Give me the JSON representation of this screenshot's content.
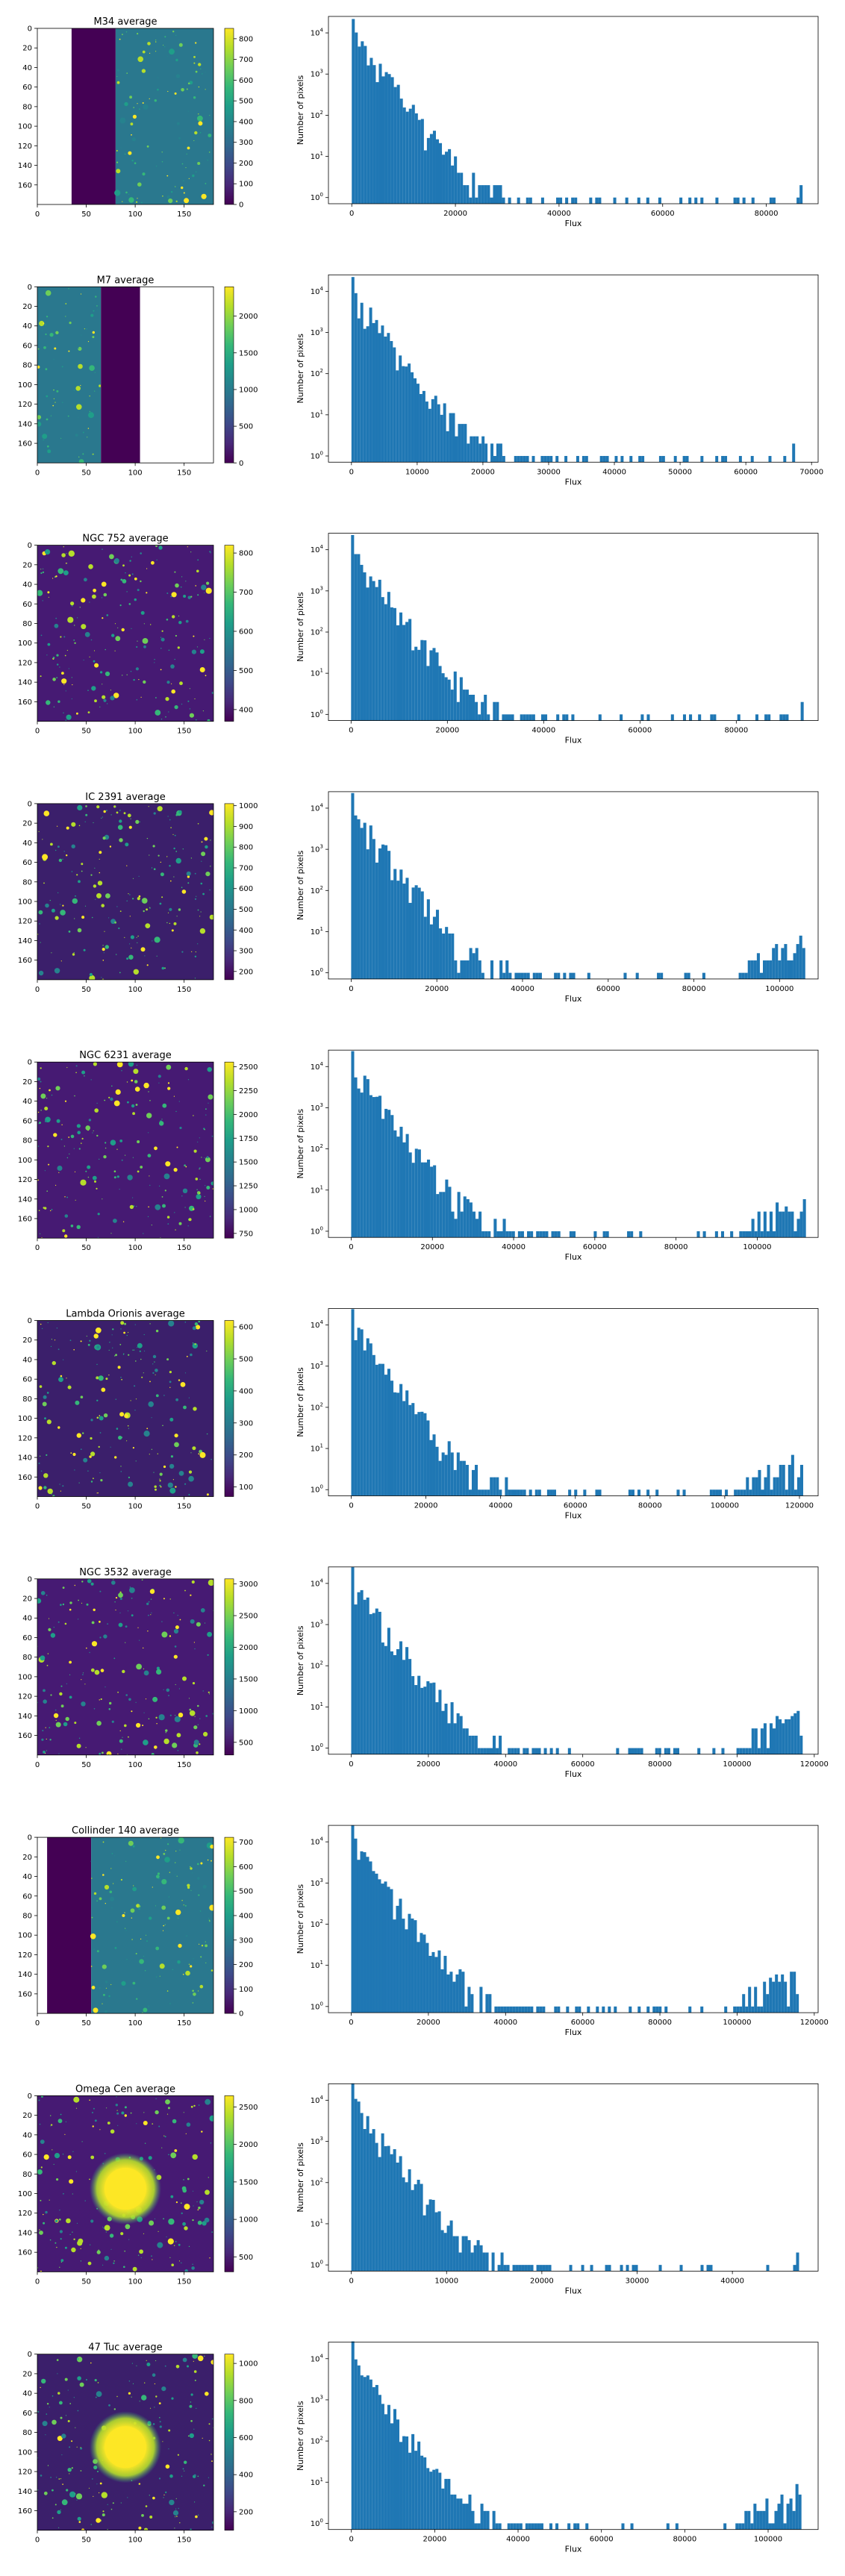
{
  "figure": {
    "colorbar_colors": [
      "#440154",
      "#482878",
      "#3e4a89",
      "#31688e",
      "#26828e",
      "#1f9e89",
      "#35b779",
      "#6ece58",
      "#b5de2b",
      "#fde725"
    ],
    "bar_color": "#1f77b4"
  },
  "chart_data": [
    {
      "type": "heatmap",
      "title": "M34 average",
      "xticks": [
        0,
        50,
        100,
        150
      ],
      "yticks": [
        0,
        20,
        40,
        60,
        80,
        100,
        120,
        140,
        160
      ],
      "xlim": [
        0,
        180
      ],
      "ylim": [
        180,
        0
      ],
      "colorbar_ticks": [
        0,
        100,
        200,
        300,
        400,
        500,
        600,
        700,
        800
      ],
      "colorbar_range": [
        0,
        850
      ],
      "pattern": "left white band, dark band, starfield on right",
      "bands": [
        {
          "x": [
            0,
            35
          ],
          "fill": "white"
        },
        {
          "x": [
            35,
            80
          ],
          "fill": "dark"
        },
        {
          "x": [
            80,
            180
          ],
          "fill": "stars"
        }
      ]
    },
    {
      "type": "bar",
      "xlabel": "Flux",
      "ylabel": "Number of pixels",
      "yscale": "log",
      "xticks": [
        0,
        20000,
        40000,
        60000,
        80000
      ],
      "xlim": [
        -4500,
        90000
      ],
      "peak_flux": 87000
    },
    {
      "type": "heatmap",
      "title": "M7 average",
      "xticks": [
        0,
        50,
        100,
        150
      ],
      "yticks": [
        0,
        20,
        40,
        60,
        80,
        100,
        120,
        140,
        160
      ],
      "xlim": [
        0,
        180
      ],
      "ylim": [
        180,
        0
      ],
      "colorbar_ticks": [
        0,
        500,
        1000,
        1500,
        2000
      ],
      "colorbar_range": [
        0,
        2400
      ],
      "bands": [
        {
          "x": [
            0,
            65
          ],
          "fill": "stars"
        },
        {
          "x": [
            65,
            105
          ],
          "fill": "dark"
        },
        {
          "x": [
            105,
            180
          ],
          "fill": "white"
        }
      ]
    },
    {
      "type": "bar",
      "xlabel": "Flux",
      "ylabel": "Number of pixels",
      "yscale": "log",
      "xticks": [
        0,
        10000,
        20000,
        30000,
        40000,
        50000,
        60000,
        70000
      ],
      "xlim": [
        -3500,
        71000
      ],
      "peak_flux": 67500
    },
    {
      "type": "heatmap",
      "title": "NGC 752 average",
      "xticks": [
        0,
        50,
        100,
        150
      ],
      "yticks": [
        0,
        20,
        40,
        60,
        80,
        100,
        120,
        140,
        160
      ],
      "xlim": [
        0,
        180
      ],
      "ylim": [
        180,
        0
      ],
      "colorbar_ticks": [
        400,
        500,
        600,
        700,
        800
      ],
      "colorbar_range": [
        370,
        820
      ],
      "bands": [
        {
          "x": [
            0,
            180
          ],
          "fill": "stars"
        }
      ]
    },
    {
      "type": "bar",
      "xlabel": "Flux",
      "ylabel": "Number of pixels",
      "yscale": "log",
      "xticks": [
        0,
        20000,
        40000,
        60000,
        80000
      ],
      "xlim": [
        -4700,
        97000
      ],
      "peak_flux": 94000
    },
    {
      "type": "heatmap",
      "title": "IC 2391 average",
      "xticks": [
        0,
        50,
        100,
        150
      ],
      "yticks": [
        0,
        20,
        40,
        60,
        80,
        100,
        120,
        140,
        160
      ],
      "xlim": [
        0,
        180
      ],
      "ylim": [
        180,
        0
      ],
      "colorbar_ticks": [
        200,
        300,
        400,
        500,
        600,
        700,
        800,
        900,
        1000
      ],
      "colorbar_range": [
        160,
        1010
      ],
      "bands": [
        {
          "x": [
            0,
            180
          ],
          "fill": "stars"
        }
      ]
    },
    {
      "type": "bar",
      "xlabel": "Flux",
      "ylabel": "Number of pixels",
      "yscale": "log",
      "xticks": [
        0,
        20000,
        40000,
        60000,
        80000,
        100000
      ],
      "xlim": [
        -5300,
        109000
      ],
      "peak_flux": 106000
    },
    {
      "type": "heatmap",
      "title": "NGC 6231 average",
      "xticks": [
        0,
        50,
        100,
        150
      ],
      "yticks": [
        0,
        20,
        40,
        60,
        80,
        100,
        120,
        140,
        160
      ],
      "xlim": [
        0,
        180
      ],
      "ylim": [
        180,
        0
      ],
      "colorbar_ticks": [
        750,
        1000,
        1250,
        1500,
        1750,
        2000,
        2250,
        2500
      ],
      "colorbar_range": [
        700,
        2550
      ],
      "bands": [
        {
          "x": [
            0,
            180
          ],
          "fill": "stars"
        }
      ]
    },
    {
      "type": "bar",
      "xlabel": "Flux",
      "ylabel": "Number of pixels",
      "yscale": "log",
      "xticks": [
        0,
        20000,
        40000,
        60000,
        80000,
        100000
      ],
      "xlim": [
        -5600,
        115000
      ],
      "peak_flux": 112000
    },
    {
      "type": "heatmap",
      "title": "Lambda Orionis average",
      "xticks": [
        0,
        50,
        100,
        150
      ],
      "yticks": [
        0,
        20,
        40,
        60,
        80,
        100,
        120,
        140,
        160
      ],
      "xlim": [
        0,
        180
      ],
      "ylim": [
        180,
        0
      ],
      "colorbar_ticks": [
        100,
        200,
        300,
        400,
        500,
        600
      ],
      "colorbar_range": [
        70,
        620
      ],
      "bands": [
        {
          "x": [
            0,
            180
          ],
          "fill": "stars"
        }
      ]
    },
    {
      "type": "bar",
      "xlabel": "Flux",
      "ylabel": "Number of pixels",
      "yscale": "log",
      "xticks": [
        0,
        20000,
        40000,
        60000,
        80000,
        100000,
        120000
      ],
      "xlim": [
        -6100,
        125000
      ],
      "peak_flux": 121000
    },
    {
      "type": "heatmap",
      "title": "NGC 3532 average",
      "xticks": [
        0,
        50,
        100,
        150
      ],
      "yticks": [
        0,
        20,
        40,
        60,
        80,
        100,
        120,
        140,
        160
      ],
      "xlim": [
        0,
        180
      ],
      "ylim": [
        180,
        0
      ],
      "colorbar_ticks": [
        500,
        1000,
        1500,
        2000,
        2500,
        3000
      ],
      "colorbar_range": [
        300,
        3080
      ],
      "bands": [
        {
          "x": [
            0,
            180
          ],
          "fill": "stars"
        }
      ]
    },
    {
      "type": "bar",
      "xlabel": "Flux",
      "ylabel": "Number of pixels",
      "yscale": "log",
      "xticks": [
        0,
        20000,
        40000,
        60000,
        80000,
        100000,
        120000
      ],
      "xlim": [
        -5900,
        121000
      ],
      "peak_flux": 117000
    },
    {
      "type": "heatmap",
      "title": "Collinder 140 average",
      "xticks": [
        0,
        50,
        100,
        150
      ],
      "yticks": [
        0,
        20,
        40,
        60,
        80,
        100,
        120,
        140,
        160
      ],
      "xlim": [
        0,
        180
      ],
      "ylim": [
        180,
        0
      ],
      "colorbar_ticks": [
        0,
        100,
        200,
        300,
        400,
        500,
        600,
        700
      ],
      "colorbar_range": [
        0,
        720
      ],
      "bands": [
        {
          "x": [
            0,
            10
          ],
          "fill": "white"
        },
        {
          "x": [
            10,
            55
          ],
          "fill": "dark"
        },
        {
          "x": [
            55,
            180
          ],
          "fill": "stars"
        }
      ]
    },
    {
      "type": "bar",
      "xlabel": "Flux",
      "ylabel": "Number of pixels",
      "yscale": "log",
      "xticks": [
        0,
        20000,
        40000,
        60000,
        80000,
        100000,
        120000
      ],
      "xlim": [
        -5900,
        121000
      ],
      "peak_flux": 116000
    },
    {
      "type": "heatmap",
      "title": "Omega Cen average",
      "xticks": [
        0,
        50,
        100,
        150
      ],
      "yticks": [
        0,
        20,
        40,
        60,
        80,
        100,
        120,
        140,
        160
      ],
      "xlim": [
        0,
        180
      ],
      "ylim": [
        180,
        0
      ],
      "colorbar_ticks": [
        500,
        1000,
        1500,
        2000,
        2500
      ],
      "colorbar_range": [
        300,
        2650
      ],
      "bands": [
        {
          "x": [
            0,
            180
          ],
          "fill": "cluster"
        }
      ]
    },
    {
      "type": "bar",
      "xlabel": "Flux",
      "ylabel": "Number of pixels",
      "yscale": "log",
      "xticks": [
        0,
        10000,
        20000,
        30000,
        40000
      ],
      "xlim": [
        -2400,
        49000
      ],
      "peak_flux": 47000
    },
    {
      "type": "heatmap",
      "title": "47 Tuc average",
      "xticks": [
        0,
        50,
        100,
        150
      ],
      "yticks": [
        0,
        20,
        40,
        60,
        80,
        100,
        120,
        140,
        160
      ],
      "xlim": [
        0,
        180
      ],
      "ylim": [
        180,
        0
      ],
      "colorbar_ticks": [
        200,
        400,
        600,
        800,
        1000
      ],
      "colorbar_range": [
        100,
        1050
      ],
      "bands": [
        {
          "x": [
            0,
            180
          ],
          "fill": "cluster"
        }
      ]
    },
    {
      "type": "bar",
      "xlabel": "Flux",
      "ylabel": "Number of pixels",
      "yscale": "log",
      "xticks": [
        0,
        20000,
        40000,
        60000,
        80000,
        100000
      ],
      "xlim": [
        -5500,
        112000
      ],
      "peak_flux": 108000
    }
  ]
}
